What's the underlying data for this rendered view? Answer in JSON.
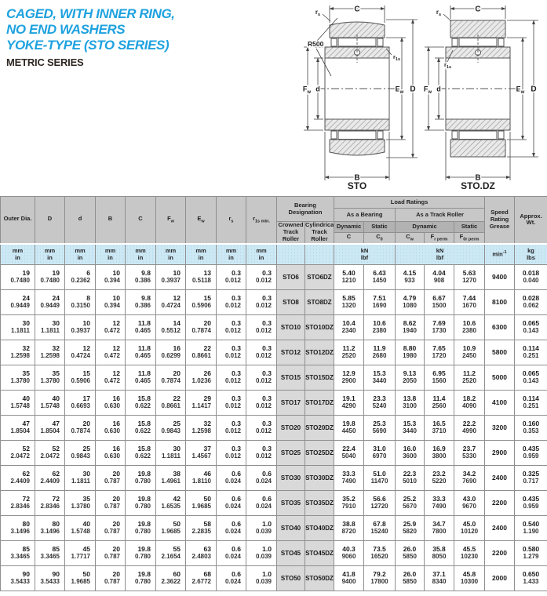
{
  "page": {
    "title_lines": [
      "CAGED, WITH INNER RING,",
      "NO END WASHERS",
      "YOKE-TYPE (STO SERIES)"
    ],
    "subtitle": "METRIC SERIES",
    "accent_color": "#1ea2df",
    "header_gray": "#c7c7c7",
    "units_blue": "#cde8f5"
  },
  "diagrams": {
    "sto": {
      "caption": "STO",
      "c": "C",
      "b": "B",
      "d_outer": "D",
      "d_bore": "d",
      "ew_base": "E",
      "ew_sub": "w",
      "fw_base": "F",
      "fw_sub": "w",
      "rs_base": "r",
      "rs_sub": "s",
      "r1s_base": "r",
      "r1s_sub": "1s",
      "r500": "R500"
    },
    "stodz": {
      "caption": "STO.DZ",
      "c": "C",
      "b": "B",
      "d_outer": "D",
      "d_bore": "d",
      "ew_base": "E",
      "ew_sub": "w",
      "fw_base": "F",
      "fw_sub": "w",
      "rs_base": "r",
      "rs_sub": "s",
      "r1s_base": "r",
      "r1s_sub": "1s"
    }
  },
  "table": {
    "dim_headers": [
      {
        "base": "Outer Dia.",
        "sub": ""
      },
      {
        "base": "D",
        "sub": ""
      },
      {
        "base": "d",
        "sub": ""
      },
      {
        "base": "B",
        "sub": ""
      },
      {
        "base": "C",
        "sub": ""
      },
      {
        "base": "F",
        "sub": "w"
      },
      {
        "base": "E",
        "sub": "w"
      },
      {
        "base": "r",
        "sub": "s"
      },
      {
        "base": "r",
        "sub": "1s min."
      }
    ],
    "designation": {
      "title": "Bearing Designation",
      "crowned": "Crowned Track Roller",
      "cylindrical": "Cylindrical Track Roller"
    },
    "load": {
      "title": "Load Ratings",
      "as_bearing": "As a Bearing",
      "as_track": "As a Track Roller",
      "dyn1": "Dynamic",
      "stat1": "Static",
      "dyn2": "Dynamic",
      "stat2": "Static",
      "sym": [
        {
          "base": "C",
          "sub": ""
        },
        {
          "base": "C",
          "sub": "0"
        },
        {
          "base": "C",
          "sub": "w"
        },
        {
          "base": "F",
          "sub": "r perm"
        },
        {
          "base": "F",
          "sub": "0r perm"
        }
      ]
    },
    "speed": "Speed Rating Grease",
    "weight": "Approx. Wt.",
    "units": {
      "mm": "mm",
      "in": "in",
      "kn": "kN",
      "lbf": "lbf",
      "min_base": "min",
      "min_sup": "-1",
      "kg": "kg",
      "lbs": "lbs"
    },
    "rows": [
      {
        "values": [
          [
            "19",
            "0.7480"
          ],
          [
            "19",
            "0.7480"
          ],
          [
            "6",
            "0.2362"
          ],
          [
            "10",
            "0.394"
          ],
          [
            "9.8",
            "0.386"
          ],
          [
            "10",
            "0.3937"
          ],
          [
            "13",
            "0.5118"
          ],
          [
            "0.3",
            "0.012"
          ],
          [
            "0.3",
            "0.012"
          ],
          "STO6",
          "STO6DZ",
          [
            "5.40",
            "1210"
          ],
          [
            "6.43",
            "1450"
          ],
          [
            "4.15",
            "933"
          ],
          [
            "4.04",
            "908"
          ],
          [
            "5.63",
            "1270"
          ],
          "9400",
          [
            "0.018",
            "0.040"
          ]
        ]
      },
      {
        "values": [
          [
            "24",
            "0.9449"
          ],
          [
            "24",
            "0.9449"
          ],
          [
            "8",
            "0.3150"
          ],
          [
            "10",
            "0.394"
          ],
          [
            "9.8",
            "0.386"
          ],
          [
            "12",
            "0.4724"
          ],
          [
            "15",
            "0.5906"
          ],
          [
            "0.3",
            "0.012"
          ],
          [
            "0.3",
            "0.012"
          ],
          "STO8",
          "STO8DZ",
          [
            "5.85",
            "1320"
          ],
          [
            "7.51",
            "1690"
          ],
          [
            "4.79",
            "1080"
          ],
          [
            "6.67",
            "1500"
          ],
          [
            "7.44",
            "1670"
          ],
          "8100",
          [
            "0.028",
            "0.062"
          ]
        ]
      },
      {
        "values": [
          [
            "30",
            "1.1811"
          ],
          [
            "30",
            "1.1811"
          ],
          [
            "10",
            "0.3937"
          ],
          [
            "12",
            "0.472"
          ],
          [
            "11.8",
            "0.465"
          ],
          [
            "14",
            "0.5512"
          ],
          [
            "20",
            "0.7874"
          ],
          [
            "0.3",
            "0.012"
          ],
          [
            "0.3",
            "0.012"
          ],
          "STO10",
          "STO10DZ",
          [
            "10.4",
            "2340"
          ],
          [
            "10.6",
            "2380"
          ],
          [
            "8.62",
            "1940"
          ],
          [
            "7.69",
            "1730"
          ],
          [
            "10.6",
            "2380"
          ],
          "6300",
          [
            "0.065",
            "0.143"
          ]
        ]
      },
      {
        "values": [
          [
            "32",
            "1.2598"
          ],
          [
            "32",
            "1.2598"
          ],
          [
            "12",
            "0.4724"
          ],
          [
            "12",
            "0.472"
          ],
          [
            "11.8",
            "0.465"
          ],
          [
            "16",
            "0.6299"
          ],
          [
            "22",
            "0.8661"
          ],
          [
            "0.3",
            "0.012"
          ],
          [
            "0.3",
            "0.012"
          ],
          "STO12",
          "STO12DZ",
          [
            "11.2",
            "2520"
          ],
          [
            "11.9",
            "2680"
          ],
          [
            "8.80",
            "1980"
          ],
          [
            "7.65",
            "1720"
          ],
          [
            "10.9",
            "2450"
          ],
          "5800",
          [
            "0.114",
            "0.251"
          ]
        ]
      },
      {
        "values": [
          [
            "35",
            "1.3780"
          ],
          [
            "35",
            "1.3780"
          ],
          [
            "15",
            "0.5906"
          ],
          [
            "12",
            "0.472"
          ],
          [
            "11.8",
            "0.465"
          ],
          [
            "20",
            "0.7874"
          ],
          [
            "26",
            "1.0236"
          ],
          [
            "0.3",
            "0.012"
          ],
          [
            "0.3",
            "0.012"
          ],
          "STO15",
          "STO15DZ",
          [
            "12.9",
            "2900"
          ],
          [
            "15.3",
            "3440"
          ],
          [
            "9.13",
            "2050"
          ],
          [
            "6.95",
            "1560"
          ],
          [
            "11.2",
            "2520"
          ],
          "5000",
          [
            "0.065",
            "0.143"
          ]
        ]
      },
      {
        "values": [
          [
            "40",
            "1.5748"
          ],
          [
            "40",
            "1.5748"
          ],
          [
            "17",
            "0.6693"
          ],
          [
            "16",
            "0.630"
          ],
          [
            "15.8",
            "0.622"
          ],
          [
            "22",
            "0.8661"
          ],
          [
            "29",
            "1.1417"
          ],
          [
            "0.3",
            "0.012"
          ],
          [
            "0.3",
            "0.012"
          ],
          "STO17",
          "STO17DZ",
          [
            "19.1",
            "4290"
          ],
          [
            "23.3",
            "5240"
          ],
          [
            "13.8",
            "3100"
          ],
          [
            "11.4",
            "2560"
          ],
          [
            "18.2",
            "4090"
          ],
          "4100",
          [
            "0.114",
            "0.251"
          ]
        ]
      },
      {
        "values": [
          [
            "47",
            "1.8504"
          ],
          [
            "47",
            "1.8504"
          ],
          [
            "20",
            "0.7874"
          ],
          [
            "16",
            "0.630"
          ],
          [
            "15.8",
            "0.622"
          ],
          [
            "25",
            "0.9843"
          ],
          [
            "32",
            "1.2598"
          ],
          [
            "0.3",
            "0.012"
          ],
          [
            "0.3",
            "0.012"
          ],
          "STO20",
          "STO20DZ",
          [
            "19.8",
            "4450"
          ],
          [
            "25.3",
            "5690"
          ],
          [
            "15.3",
            "3440"
          ],
          [
            "16.5",
            "3710"
          ],
          [
            "22.2",
            "4990"
          ],
          "3200",
          [
            "0.160",
            "0.353"
          ]
        ]
      },
      {
        "values": [
          [
            "52",
            "2.0472"
          ],
          [
            "52",
            "2.0472"
          ],
          [
            "25",
            "0.9843"
          ],
          [
            "16",
            "0.630"
          ],
          [
            "15.8",
            "0.622"
          ],
          [
            "30",
            "1.1811"
          ],
          [
            "37",
            "1.4567"
          ],
          [
            "0.3",
            "0.012"
          ],
          [
            "0.3",
            "0.012"
          ],
          "STO25",
          "STO25DZ",
          [
            "22.4",
            "5040"
          ],
          [
            "31.0",
            "6970"
          ],
          [
            "16.0",
            "3600"
          ],
          [
            "16.9",
            "3800"
          ],
          [
            "23.7",
            "5330"
          ],
          "2900",
          [
            "0.435",
            "0.959"
          ]
        ]
      },
      {
        "values": [
          [
            "62",
            "2.4409"
          ],
          [
            "62",
            "2.4409"
          ],
          [
            "30",
            "1.1811"
          ],
          [
            "20",
            "0.787"
          ],
          [
            "19.8",
            "0.780"
          ],
          [
            "38",
            "1.4961"
          ],
          [
            "46",
            "1.8110"
          ],
          [
            "0.6",
            "0.024"
          ],
          [
            "0.6",
            "0.024"
          ],
          "STO30",
          "STO30DZ",
          [
            "33.3",
            "7490"
          ],
          [
            "51.0",
            "11470"
          ],
          [
            "22.3",
            "5010"
          ],
          [
            "23.2",
            "5220"
          ],
          [
            "34.2",
            "7690"
          ],
          "2400",
          [
            "0.325",
            "0.717"
          ]
        ]
      },
      {
        "values": [
          [
            "72",
            "2.8346"
          ],
          [
            "72",
            "2.8346"
          ],
          [
            "35",
            "1.3780"
          ],
          [
            "20",
            "0.787"
          ],
          [
            "19.8",
            "0.780"
          ],
          [
            "42",
            "1.6535"
          ],
          [
            "50",
            "1.9685"
          ],
          [
            "0.6",
            "0.024"
          ],
          [
            "0.6",
            "0.024"
          ],
          "STO35",
          "STO35DZ",
          [
            "35.2",
            "7910"
          ],
          [
            "56.6",
            "12720"
          ],
          [
            "25.2",
            "5670"
          ],
          [
            "33.3",
            "7490"
          ],
          [
            "43.0",
            "9670"
          ],
          "2200",
          [
            "0.435",
            "0.959"
          ]
        ]
      },
      {
        "values": [
          [
            "80",
            "3.1496"
          ],
          [
            "80",
            "3.1496"
          ],
          [
            "40",
            "1.5748"
          ],
          [
            "20",
            "0.787"
          ],
          [
            "19.8",
            "0.780"
          ],
          [
            "50",
            "1.9685"
          ],
          [
            "58",
            "2.2835"
          ],
          [
            "0.6",
            "0.024"
          ],
          [
            "1.0",
            "0.039"
          ],
          "STO40",
          "STO40DZ",
          [
            "38.8",
            "8720"
          ],
          [
            "67.8",
            "15240"
          ],
          [
            "25.9",
            "5820"
          ],
          [
            "34.7",
            "7800"
          ],
          [
            "45.0",
            "10120"
          ],
          "2400",
          [
            "0.540",
            "1.190"
          ]
        ]
      },
      {
        "values": [
          [
            "85",
            "3.3465"
          ],
          [
            "85",
            "3.3465"
          ],
          [
            "45",
            "1.7717"
          ],
          [
            "20",
            "0.787"
          ],
          [
            "19.8",
            "0.780"
          ],
          [
            "55",
            "2.1654"
          ],
          [
            "63",
            "2.4803"
          ],
          [
            "0.6",
            "0.024"
          ],
          [
            "1.0",
            "0.039"
          ],
          "STO45",
          "STO45DZ",
          [
            "40.3",
            "9060"
          ],
          [
            "73.5",
            "16520"
          ],
          [
            "26.0",
            "5850"
          ],
          [
            "35.8",
            "8050"
          ],
          [
            "45.5",
            "10230"
          ],
          "2200",
          [
            "0.580",
            "1.279"
          ]
        ]
      },
      {
        "values": [
          [
            "90",
            "3.5433"
          ],
          [
            "90",
            "3.5433"
          ],
          [
            "50",
            "1.9685"
          ],
          [
            "20",
            "0.787"
          ],
          [
            "19.8",
            "0.780"
          ],
          [
            "60",
            "2.3622"
          ],
          [
            "68",
            "2.6772"
          ],
          [
            "0.6",
            "0.024"
          ],
          [
            "1.0",
            "0.039"
          ],
          "STO50",
          "STO50DZ",
          [
            "41.8",
            "9400"
          ],
          [
            "79.2",
            "17800"
          ],
          [
            "26.0",
            "5850"
          ],
          [
            "37.1",
            "8340"
          ],
          [
            "45.8",
            "10300"
          ],
          "2000",
          [
            "0.650",
            "1.433"
          ]
        ]
      }
    ]
  }
}
